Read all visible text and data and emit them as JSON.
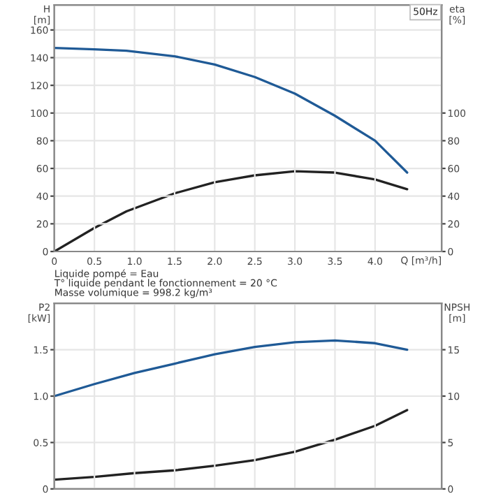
{
  "chart_data": [
    {
      "type": "line",
      "ylabel": "H\n[m]",
      "y2label": "eta\n[%]",
      "xlabel": "Q [m³/h]",
      "annotations": [
        "50Hz"
      ],
      "x": [
        0,
        0.5,
        0.9,
        1.5,
        2.0,
        2.5,
        3.0,
        3.5,
        4.0,
        4.4
      ],
      "series": [
        {
          "color": "#1f5a96",
          "values": [
            147,
            146,
            145,
            141,
            135,
            126,
            114,
            98,
            80,
            57
          ]
        },
        {
          "color": "#222222",
          "axis": "y2",
          "values": [
            0,
            17,
            29,
            42,
            50,
            55,
            58,
            57,
            52,
            45
          ]
        }
      ],
      "xlim": [
        0,
        4.83
      ],
      "xticks": [
        0,
        0.5,
        {
          "value": 1,
          "label": "1.0"
        },
        1.5,
        {
          "value": 2,
          "label": "2.0"
        },
        2.5,
        {
          "value": 3,
          "label": "3.0"
        },
        3.5,
        {
          "value": 4,
          "label": "4.0"
        }
      ],
      "ylim": [
        0,
        178
      ],
      "yticks": [
        0,
        20,
        40,
        60,
        80,
        100,
        120,
        140,
        160
      ],
      "y2lim": [
        0,
        178
      ],
      "y2ticks": [
        0,
        20,
        40,
        60,
        80,
        100
      ],
      "grid": true
    },
    {
      "type": "line",
      "ylabel": "P2\n[kW]",
      "y2label": "NPSH\n[m]",
      "annotations": [
        "Liquide pompé = Eau",
        "T° liquide pendant le fonctionnement = 20 °C",
        "Masse volumique = 998.2 kg/m³"
      ],
      "x": [
        0,
        0.5,
        1.0,
        1.5,
        2.0,
        2.5,
        3.0,
        3.5,
        4.0,
        4.4
      ],
      "series": [
        {
          "color": "#1f5a96",
          "values": [
            1.0,
            1.13,
            1.25,
            1.35,
            1.45,
            1.53,
            1.58,
            1.6,
            1.57,
            1.5
          ]
        },
        {
          "color": "#222222",
          "axis": "y2",
          "values": [
            1.0,
            1.3,
            1.7,
            2.0,
            2.5,
            3.1,
            4.0,
            5.3,
            6.8,
            8.5
          ]
        }
      ],
      "xlim": [
        0,
        4.83
      ],
      "xticks": [
        0,
        0.5,
        1.0,
        1.5,
        2.0,
        2.5,
        3.0,
        3.5,
        4.0
      ],
      "ylim": [
        0,
        2.0
      ],
      "yticks": [
        0,
        0.5,
        {
          "value": 1,
          "label": "1.0"
        },
        1.5
      ],
      "y2lim": [
        0,
        20
      ],
      "y2ticks": [
        0,
        5,
        10,
        15
      ],
      "grid": true,
      "tick_labels": "y"
    }
  ]
}
